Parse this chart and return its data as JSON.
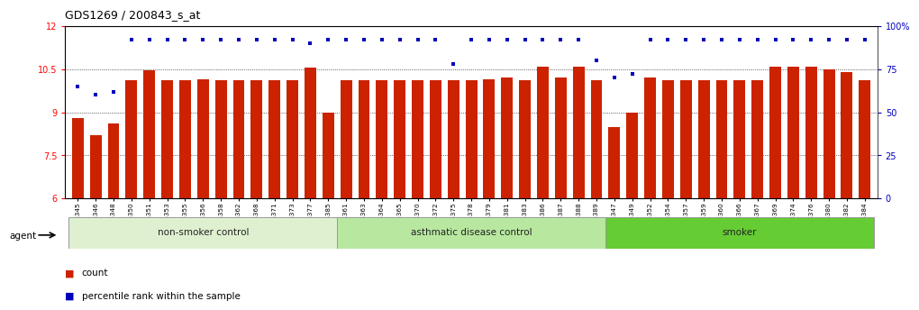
{
  "title": "GDS1269 / 200843_s_at",
  "categories": [
    "GSM38345",
    "GSM38346",
    "GSM38348",
    "GSM38350",
    "GSM38351",
    "GSM38353",
    "GSM38355",
    "GSM38356",
    "GSM38358",
    "GSM38362",
    "GSM38368",
    "GSM38371",
    "GSM38373",
    "GSM38377",
    "GSM38385",
    "GSM38361",
    "GSM38363",
    "GSM38364",
    "GSM38365",
    "GSM38370",
    "GSM38372",
    "GSM38375",
    "GSM38378",
    "GSM38379",
    "GSM38381",
    "GSM38383",
    "GSM38386",
    "GSM38387",
    "GSM38388",
    "GSM38389",
    "GSM38347",
    "GSM38349",
    "GSM38352",
    "GSM38354",
    "GSM38357",
    "GSM38359",
    "GSM38360",
    "GSM38366",
    "GSM38367",
    "GSM38369",
    "GSM38374",
    "GSM38376",
    "GSM38380",
    "GSM38382",
    "GSM38384"
  ],
  "bar_values": [
    8.8,
    8.2,
    8.6,
    10.1,
    10.45,
    10.1,
    10.1,
    10.15,
    10.1,
    10.1,
    10.1,
    10.1,
    10.1,
    10.55,
    9.0,
    10.1,
    10.1,
    10.1,
    10.1,
    10.1,
    10.1,
    10.1,
    10.1,
    10.15,
    10.2,
    10.1,
    10.6,
    10.2,
    10.6,
    10.1,
    8.5,
    9.0,
    10.2,
    10.1,
    10.1,
    10.1,
    10.1,
    10.1,
    10.1,
    10.6,
    10.6,
    10.6,
    10.5,
    10.4,
    10.1
  ],
  "percentile_values": [
    65,
    60,
    62,
    92,
    92,
    92,
    92,
    92,
    92,
    92,
    92,
    92,
    92,
    90,
    92,
    92,
    92,
    92,
    92,
    92,
    92,
    78,
    92,
    92,
    92,
    92,
    92,
    92,
    92,
    80,
    70,
    72,
    92,
    92,
    92,
    92,
    92,
    92,
    92,
    92,
    92,
    92,
    92,
    92,
    92
  ],
  "groups": [
    {
      "label": "non-smoker control",
      "start": 0,
      "end": 15,
      "color": "#dff0d0"
    },
    {
      "label": "asthmatic disease control",
      "start": 15,
      "end": 30,
      "color": "#b8e8a0"
    },
    {
      "label": "smoker",
      "start": 30,
      "end": 45,
      "color": "#66cc33"
    }
  ],
  "ylim_left": [
    6,
    12
  ],
  "ylim_right": [
    0,
    100
  ],
  "bar_color": "#cc2200",
  "dot_color": "#0000bb",
  "yticks_left": [
    6,
    7.5,
    9,
    10.5,
    12
  ],
  "yticks_right": [
    0,
    25,
    50,
    75,
    100
  ],
  "title_fontsize": 9,
  "tick_fontsize": 6,
  "agent_label": "agent"
}
